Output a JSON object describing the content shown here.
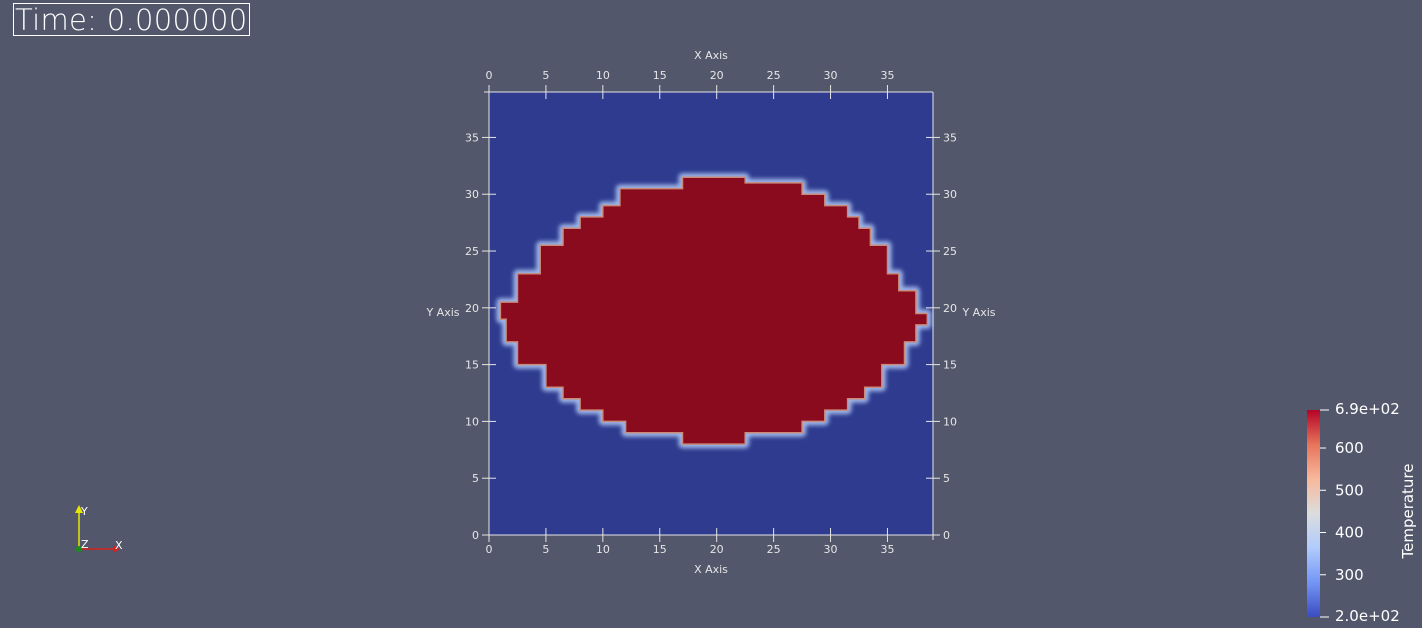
{
  "time_annotation": "Time: 0.000000",
  "axes": {
    "x_title": "X Axis",
    "y_title": "Y Axis",
    "x_ticks": [
      "0",
      "5",
      "10",
      "15",
      "20",
      "25",
      "30",
      "35"
    ],
    "y_ticks": [
      "0",
      "5",
      "10",
      "15",
      "20",
      "25",
      "30",
      "35"
    ],
    "x_range": [
      0,
      39
    ],
    "y_range": [
      0,
      39
    ]
  },
  "colorbar": {
    "title": "Temperature",
    "min_label": "2.0e+02",
    "max_label": "6.9e+02",
    "tick_labels": [
      "600",
      "500",
      "400",
      "300"
    ],
    "range": [
      200,
      690
    ],
    "colors": [
      "#3b4cc0",
      "#7396f5",
      "#b0cbfc",
      "#dcdddd",
      "#f7b89c",
      "#e7745b",
      "#b40426"
    ]
  },
  "orientation_axes": {
    "x_label": "X",
    "y_label": "Y",
    "z_label": "Z",
    "x_color": "#d62020",
    "y_color": "#e6e600",
    "z_color": "#1a8c1a"
  },
  "field": {
    "background_value_color": "#2e3b8f",
    "hot_region_color": "#8a0a1e",
    "boundary_color": "#c8b8b0"
  },
  "chart_data": {
    "type": "heatmap",
    "title": "",
    "xlabel": "X Axis",
    "ylabel": "Y Axis",
    "xlim": [
      0,
      39
    ],
    "ylim": [
      0,
      39
    ],
    "legend": "Temperature",
    "value_range": [
      200,
      690
    ],
    "description_values": {
      "outside_value": 200,
      "inside_value": 690
    },
    "hot_region_boundary": [
      [
        17,
        31.5
      ],
      [
        22.5,
        31.5
      ],
      [
        22.5,
        31
      ],
      [
        27.5,
        31
      ],
      [
        27.5,
        30
      ],
      [
        29.5,
        30
      ],
      [
        29.5,
        29
      ],
      [
        31.5,
        29
      ],
      [
        31.5,
        28
      ],
      [
        32.5,
        28
      ],
      [
        32.5,
        27
      ],
      [
        33.5,
        27
      ],
      [
        33.5,
        25.5
      ],
      [
        35,
        25.5
      ],
      [
        35,
        23
      ],
      [
        36,
        23
      ],
      [
        36,
        21.5
      ],
      [
        37.5,
        21.5
      ],
      [
        37.5,
        19.5
      ],
      [
        38.5,
        19.5
      ],
      [
        38.5,
        18.5
      ],
      [
        37.5,
        18.5
      ],
      [
        37.5,
        17
      ],
      [
        36.5,
        17
      ],
      [
        36.5,
        15
      ],
      [
        34.5,
        15
      ],
      [
        34.5,
        13
      ],
      [
        33,
        13
      ],
      [
        33,
        12
      ],
      [
        31.5,
        12
      ],
      [
        31.5,
        11
      ],
      [
        29.5,
        11
      ],
      [
        29.5,
        10
      ],
      [
        27.5,
        10
      ],
      [
        27.5,
        9
      ],
      [
        22.5,
        9
      ],
      [
        22.5,
        8
      ],
      [
        17,
        8
      ],
      [
        17,
        9
      ],
      [
        12,
        9
      ],
      [
        12,
        10
      ],
      [
        10,
        10
      ],
      [
        10,
        11
      ],
      [
        8,
        11
      ],
      [
        8,
        12
      ],
      [
        6.5,
        12
      ],
      [
        6.5,
        13
      ],
      [
        5,
        13
      ],
      [
        5,
        15
      ],
      [
        2.5,
        15
      ],
      [
        2.5,
        17
      ],
      [
        1.5,
        17
      ],
      [
        1.5,
        19
      ],
      [
        1,
        19
      ],
      [
        1,
        20.5
      ],
      [
        2.5,
        20.5
      ],
      [
        2.5,
        23
      ],
      [
        4.5,
        23
      ],
      [
        4.5,
        25.5
      ],
      [
        6.5,
        25.5
      ],
      [
        6.5,
        27
      ],
      [
        8,
        27
      ],
      [
        8,
        28
      ],
      [
        10,
        28
      ],
      [
        10,
        29
      ],
      [
        11.5,
        29
      ],
      [
        11.5,
        30.5
      ],
      [
        17,
        30.5
      ]
    ]
  }
}
